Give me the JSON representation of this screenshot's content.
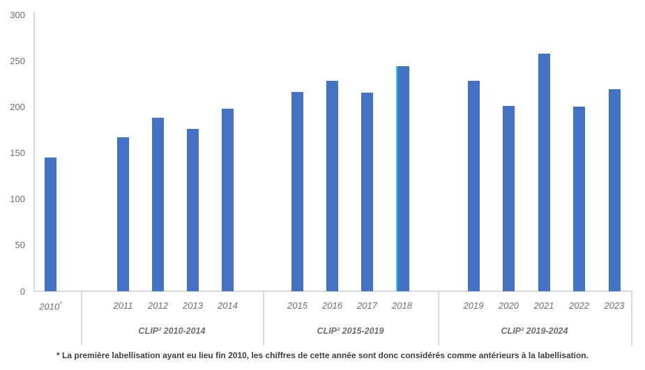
{
  "chart_data": {
    "type": "bar",
    "title": "",
    "ylim": [
      0,
      300
    ],
    "yticks": [
      0,
      50,
      100,
      150,
      200,
      250,
      300
    ],
    "grid": "off",
    "legend": "none",
    "bars": [
      {
        "year": "2010",
        "marker": "*",
        "value": 145
      },
      {
        "year": "2011",
        "value": 167
      },
      {
        "year": "2012",
        "value": 188
      },
      {
        "year": "2013",
        "value": 176
      },
      {
        "year": "2014",
        "value": 198
      },
      {
        "year": "2015",
        "value": 216
      },
      {
        "year": "2016",
        "value": 228
      },
      {
        "year": "2017",
        "value": 215
      },
      {
        "year": "2018",
        "value": 244,
        "highlight_edge": true
      },
      {
        "year": "2019",
        "value": 228
      },
      {
        "year": "2020",
        "value": 201
      },
      {
        "year": "2021",
        "value": 258
      },
      {
        "year": "2022",
        "value": 200
      },
      {
        "year": "2023",
        "value": 219
      }
    ],
    "groups": [
      {
        "label": "CLIP² 2010-2014"
      },
      {
        "label": "CLIP² 2015-2019"
      },
      {
        "label": "CLIP² 2019-2024"
      }
    ],
    "footnote": "* La première labellisation ayant eu lieu fin 2010, les chiffres de cette année sont donc considérés comme antérieurs à la labellisation.",
    "colors": {
      "bar": "#4472C4",
      "bar_highlight_edge": "#35C8EF",
      "axis_line": "#D9D9D9",
      "tick_label": "#6E6E6E",
      "year_label": "#6E6E6E",
      "group_label": "#6E6E6E",
      "footnote": "#3F3F3F"
    }
  }
}
